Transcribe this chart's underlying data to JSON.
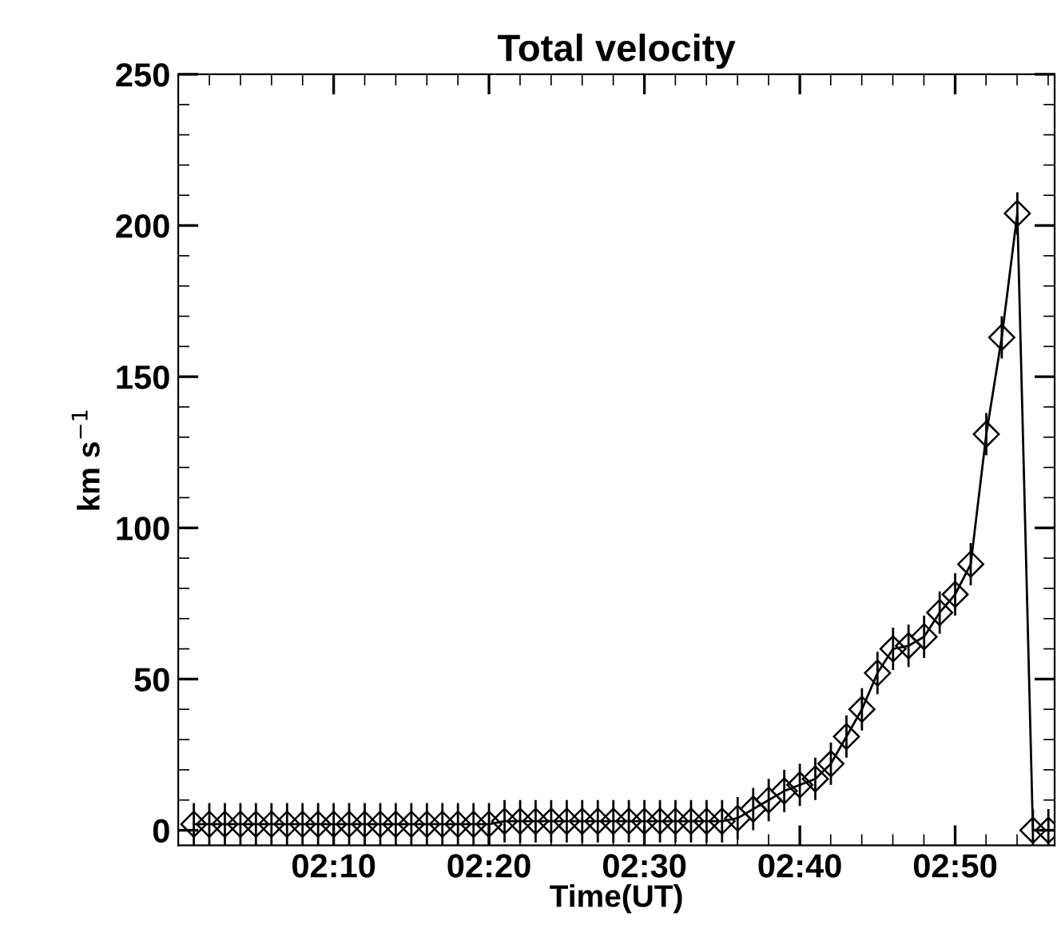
{
  "chart_data": {
    "type": "line",
    "title": "Total velocity",
    "xlabel": "Time(UT)",
    "ylabel": "km s$^{−1}$",
    "x": [
      2.0167,
      2.0333,
      2.05,
      2.0667,
      2.0833,
      2.1,
      2.1167,
      2.1333,
      2.15,
      2.1667,
      2.1833,
      2.2,
      2.2167,
      2.2333,
      2.25,
      2.2667,
      2.2833,
      2.3,
      2.3167,
      2.3333,
      2.35,
      2.3667,
      2.3833,
      2.4,
      2.4167,
      2.4333,
      2.45,
      2.4667,
      2.4833,
      2.5,
      2.5167,
      2.5333,
      2.55,
      2.5667,
      2.5833,
      2.6,
      2.6167,
      2.6333,
      2.65,
      2.6667,
      2.6833,
      2.7,
      2.7167,
      2.7333,
      2.75,
      2.7667,
      2.7833,
      2.8,
      2.8167,
      2.8333,
      2.85,
      2.8667,
      2.8833,
      2.9,
      2.9167,
      2.9333
    ],
    "series": [
      {
        "color": "#000000",
        "values": [
          2,
          2,
          2,
          2,
          2,
          2,
          2,
          2,
          2,
          2,
          2,
          2,
          2,
          2,
          2,
          2,
          2,
          2,
          2,
          2,
          3,
          3,
          3,
          3,
          3,
          3,
          3,
          3,
          3,
          3,
          3,
          3,
          3,
          3,
          3,
          4,
          7,
          10,
          13,
          15,
          17,
          22,
          31,
          40,
          52,
          60,
          61,
          64,
          72,
          78,
          88,
          131,
          163,
          204,
          0,
          0
        ],
        "errors": [
          7,
          7,
          7,
          7,
          7,
          7,
          7,
          7,
          7,
          7,
          7,
          7,
          7,
          7,
          7,
          7,
          7,
          7,
          7,
          7,
          7,
          7,
          7,
          7,
          7,
          7,
          7,
          7,
          7,
          7,
          7,
          7,
          7,
          7,
          7,
          7,
          7,
          7,
          7,
          7,
          7,
          7,
          7,
          7,
          7,
          7,
          7,
          7,
          7,
          7,
          7,
          7,
          7,
          7,
          7,
          7
        ]
      }
    ],
    "xlim": [
      2.0,
      2.94
    ],
    "ylim": [
      -5,
      250
    ],
    "xticks": [
      {
        "value": 2.1667,
        "label": "02:10"
      },
      {
        "value": 2.3333,
        "label": "02:20"
      },
      {
        "value": 2.5,
        "label": "02:30"
      },
      {
        "value": 2.6667,
        "label": "02:40"
      },
      {
        "value": 2.8333,
        "label": "02:50"
      }
    ],
    "yticks": [
      0,
      50,
      100,
      150,
      200,
      250
    ],
    "marker": "diamond",
    "line_style": "solid",
    "grid": false,
    "legend": false
  }
}
